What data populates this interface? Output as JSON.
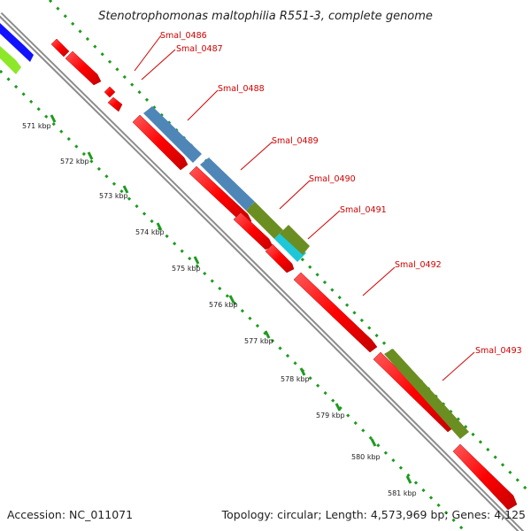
{
  "map": {
    "title": "Stenotrophomonas maltophilia R551-3, complete genome",
    "accession": "Accession: NC_011071",
    "summary": "Topology: circular; Length: 4,573,969 bp; Genes: 4,125",
    "colors": {
      "backbone": "#9a9a9a",
      "cds": "#ff0000",
      "gc_skew": "#1e9a1e",
      "label": "#d00000",
      "steelblue": "#4f86b8",
      "olive": "#6b8e23",
      "cyan": "#1ec8d8",
      "blue": "#1212ff",
      "lime": "#8ee82a"
    },
    "ticks": [
      "571 kbp",
      "572 kbp",
      "573 kbp",
      "574 kbp",
      "575 kbp",
      "576 kbp",
      "577 kbp",
      "578 kbp",
      "579 kbp",
      "580 kbp",
      "581 kbp"
    ],
    "genes": [
      "Smal_0486",
      "Smal_0487",
      "Smal_0488",
      "Smal_0489",
      "Smal_0490",
      "Smal_0491",
      "Smal_0492",
      "Smal_0493"
    ]
  }
}
